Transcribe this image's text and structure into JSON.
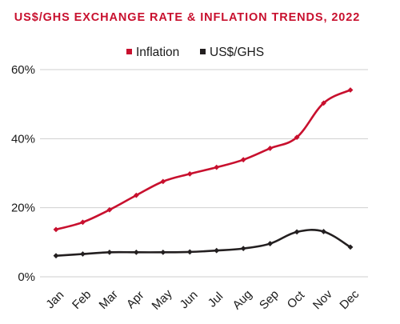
{
  "chart_data": {
    "type": "line",
    "title": "US$/GHS EXCHANGE RATE & INFLATION TRENDS, 2022",
    "categories": [
      "Jan",
      "Feb",
      "Mar",
      "Apr",
      "May",
      "Jun",
      "Jul",
      "Aug",
      "Sep",
      "Oct",
      "Nov",
      "Dec"
    ],
    "y_ticks": [
      "0%",
      "20%",
      "40%",
      "60%"
    ],
    "ylim": [
      0,
      60
    ],
    "grid": true,
    "legend_position": "top-center",
    "series": [
      {
        "name": "Inflation",
        "color": "#c8102e",
        "marker": "diamond",
        "values": [
          13.7,
          15.8,
          19.4,
          23.6,
          27.6,
          29.8,
          31.7,
          33.9,
          37.2,
          40.4,
          50.3,
          54.1
        ]
      },
      {
        "name": "US$/GHS",
        "color": "#231f20",
        "marker": "diamond",
        "values": [
          6.1,
          6.6,
          7.1,
          7.1,
          7.1,
          7.2,
          7.6,
          8.2,
          9.6,
          13.0,
          13.1,
          8.6
        ]
      }
    ]
  }
}
